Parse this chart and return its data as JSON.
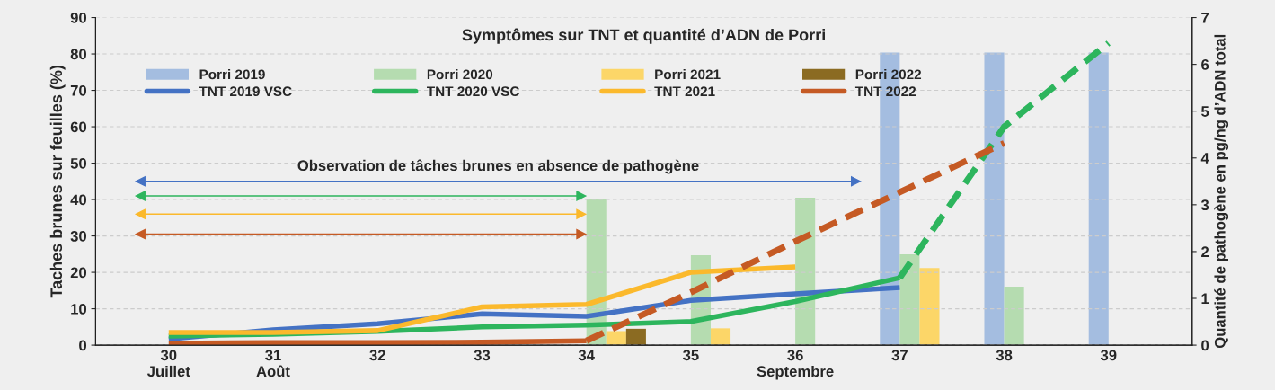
{
  "chart_data": {
    "type": "bar",
    "title": "Symptômes sur TNT et quantité d’ADN de Porri",
    "ylabel": "Taches brunes sur feuilles (%)",
    "y2label": "Quantité de pathogène en pg/ng d’ADN total",
    "x": [
      30,
      31,
      32,
      33,
      34,
      35,
      36,
      37,
      38,
      39
    ],
    "xlim": [
      29.3,
      39.8
    ],
    "xticks": [
      {
        "value": 30,
        "label": "30\nJuillet"
      },
      {
        "value": 31,
        "label": "31\nAoût"
      },
      32,
      33,
      34,
      35,
      {
        "value": 36,
        "label": "36\nSeptembre"
      },
      37,
      38,
      39
    ],
    "ylim": [
      0,
      90
    ],
    "yticks": [
      0,
      10,
      20,
      30,
      40,
      50,
      60,
      70,
      80,
      90
    ],
    "y2lim": [
      0,
      7
    ],
    "y2ticks": [
      0,
      1,
      2,
      3,
      4,
      5,
      6,
      7
    ],
    "grid": "y",
    "legend": "top",
    "annotations": [
      "Observation de tâches brunes en absence de pathogène"
    ],
    "series": [
      {
        "axis": "y2",
        "name": "Porri 2019",
        "color": "#a4bde0",
        "values": [
          null,
          null,
          null,
          null,
          null,
          null,
          null,
          6.25,
          6.25,
          6.25
        ]
      },
      {
        "axis": "y2",
        "name": "Porri 2020",
        "color": "#b5dcb0",
        "values": [
          null,
          null,
          null,
          null,
          3.13,
          1.92,
          3.15,
          1.94,
          1.25,
          null
        ]
      },
      {
        "axis": "y2",
        "name": "Porri 2021",
        "color": "#fcd668",
        "values": [
          null,
          null,
          null,
          null,
          0.3,
          0.36,
          null,
          1.65,
          null,
          null
        ]
      },
      {
        "axis": "y2",
        "name": "Porri 2022",
        "color": "#8b6b22",
        "values": [
          null,
          null,
          null,
          null,
          0.35,
          null,
          null,
          null,
          null,
          null
        ]
      },
      {
        "type": "line",
        "name": "TNT 2019 VSC",
        "color": "#4472c4",
        "line_style": "solid",
        "values": [
          1.7,
          4.2,
          5.9,
          8.6,
          7.9,
          12.3,
          14.1,
          15.8,
          null,
          null
        ]
      },
      {
        "type": "line",
        "name": "TNT 2020 VSC",
        "color": "#2db55d",
        "line_style": "solid",
        "values": [
          2.5,
          3,
          3.8,
          5,
          5.5,
          6.5,
          12,
          18.5,
          null,
          null
        ]
      },
      {
        "type": "line",
        "name": "TNT 2021",
        "color": "#fbb92c",
        "line_style": "solid",
        "values": [
          3.5,
          3.5,
          4,
          10.5,
          11.2,
          20,
          21.5,
          null,
          null,
          null
        ]
      },
      {
        "type": "line",
        "name": "TNT 2022",
        "color": "#c55a24",
        "line_style": "solid",
        "values": [
          0.5,
          0.7,
          0.7,
          0.8,
          1.2,
          null,
          null,
          null,
          null,
          null
        ]
      },
      {
        "type": "line",
        "color": "#2db55d",
        "line_style": "dashed",
        "values": [
          null,
          null,
          null,
          null,
          null,
          null,
          null,
          18.5,
          60,
          83
        ]
      },
      {
        "type": "line",
        "color": "#c55a24",
        "line_style": "dashed",
        "values": [
          null,
          null,
          null,
          null,
          1.2,
          14.5,
          28.5,
          42,
          55.5,
          null
        ]
      },
      {
        "type": "line",
        "color": "#4472c4",
        "line_style": "solid",
        "marker": "triangle",
        "x": [
          29.73,
          36.58
        ],
        "values": [
          45,
          45
        ]
      },
      {
        "type": "line",
        "color": "#2db55d",
        "line_style": "solid",
        "marker": "triangle",
        "x": [
          29.73,
          33.95
        ],
        "values": [
          41,
          41
        ]
      },
      {
        "type": "line",
        "color": "#fbb92c",
        "line_style": "solid",
        "marker": "triangle",
        "x": [
          29.73,
          33.95
        ],
        "values": [
          36,
          36
        ]
      },
      {
        "type": "line",
        "color": "#c55a24",
        "line_style": "solid",
        "marker": "triangle",
        "x": [
          29.73,
          33.95
        ],
        "values": [
          30.5,
          30.5
        ]
      }
    ]
  }
}
